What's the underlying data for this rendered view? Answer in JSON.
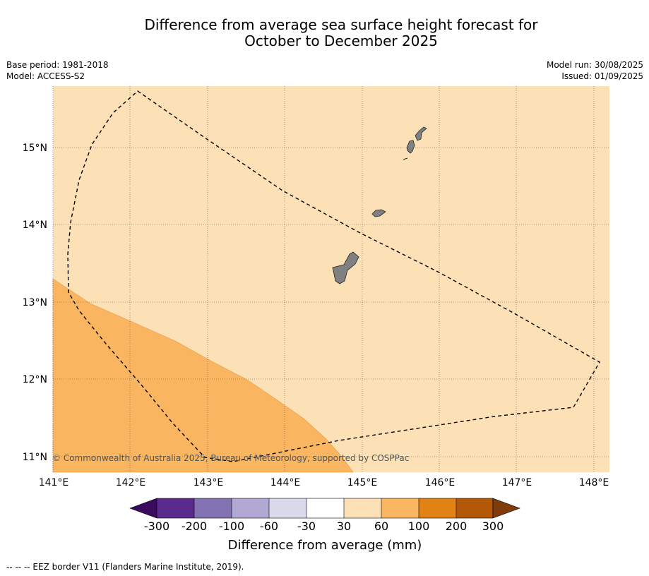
{
  "title_line1": "Difference from average sea surface height forecast for",
  "title_line2": "October to December 2025",
  "left_meta": {
    "base_period": "Base period: 1981-2018",
    "model": "Model: ACCESS-S2"
  },
  "right_meta": {
    "model_run": "Model run: 30/08/2025",
    "issued": "Issued: 01/09/2025"
  },
  "map": {
    "lat_labels": [
      "15°N",
      "14°N",
      "13°N",
      "12°N",
      "11°N"
    ],
    "lon_labels": [
      "141°E",
      "142°E",
      "143°E",
      "144°E",
      "145°E",
      "146°E",
      "147°E",
      "148°E"
    ],
    "copyright": "© Commonwealth of Australia 2025, Bureau of Meteorology, supported by COSPPac",
    "colors": {
      "band_30_60": "#fde1b6",
      "band_60_100": "#fab560",
      "land": "#808080"
    }
  },
  "colorbar": {
    "labels": [
      "-300",
      "-200",
      "-100",
      "-60",
      "-30",
      "30",
      "60",
      "100",
      "200",
      "300"
    ],
    "colors": [
      "#3a0b5e",
      "#5b2a8f",
      "#8272b2",
      "#b1a9d4",
      "#d9d9ec",
      "#ffffff",
      "#fde1b6",
      "#fab560",
      "#e08214",
      "#b35806",
      "#7f3b08"
    ],
    "title": "Difference from average (mm)"
  },
  "footer": "--  --  -- EEZ border V11 (Flanders Marine Institute, 2019)."
}
